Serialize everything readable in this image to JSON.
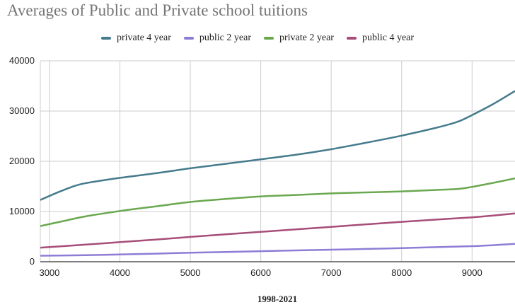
{
  "chart_data": {
    "type": "line",
    "title": "Averages of Public and Private school tuitions",
    "xlabel": "1998-2021",
    "ylabel": "",
    "xlim": [
      2870,
      9610
    ],
    "ylim": [
      0,
      40000
    ],
    "x_ticks": [
      3000,
      4000,
      5000,
      6000,
      7000,
      8000,
      9000
    ],
    "y_ticks": [
      0,
      10000,
      20000,
      30000,
      40000
    ],
    "grid": true,
    "legend_position": "top",
    "series": [
      {
        "name": "private 4 year",
        "color": "#457b8c",
        "points": [
          [
            2870,
            12300
          ],
          [
            3100,
            13700
          ],
          [
            3300,
            14800
          ],
          [
            3500,
            15600
          ],
          [
            4000,
            16700
          ],
          [
            4500,
            17600
          ],
          [
            5000,
            18600
          ],
          [
            5500,
            19500
          ],
          [
            6000,
            20400
          ],
          [
            6500,
            21300
          ],
          [
            7000,
            22400
          ],
          [
            7500,
            23700
          ],
          [
            8000,
            25100
          ],
          [
            8500,
            26700
          ],
          [
            8800,
            27900
          ],
          [
            9000,
            29200
          ],
          [
            9300,
            31400
          ],
          [
            9610,
            34000
          ]
        ]
      },
      {
        "name": "public 2 year",
        "color": "#8e7cd6",
        "points": [
          [
            2870,
            1200
          ],
          [
            3500,
            1300
          ],
          [
            4000,
            1450
          ],
          [
            4500,
            1600
          ],
          [
            5000,
            1800
          ],
          [
            5500,
            1950
          ],
          [
            6000,
            2100
          ],
          [
            6500,
            2250
          ],
          [
            7000,
            2400
          ],
          [
            7500,
            2550
          ],
          [
            8000,
            2700
          ],
          [
            8500,
            2900
          ],
          [
            9000,
            3100
          ],
          [
            9300,
            3300
          ],
          [
            9610,
            3550
          ]
        ]
      },
      {
        "name": "private 2 year",
        "color": "#6aa84f",
        "points": [
          [
            2870,
            7100
          ],
          [
            3200,
            8100
          ],
          [
            3500,
            9000
          ],
          [
            4000,
            10100
          ],
          [
            4500,
            11000
          ],
          [
            5000,
            11900
          ],
          [
            5500,
            12500
          ],
          [
            6000,
            13000
          ],
          [
            6500,
            13300
          ],
          [
            7000,
            13600
          ],
          [
            7500,
            13800
          ],
          [
            8000,
            14000
          ],
          [
            8500,
            14300
          ],
          [
            8800,
            14500
          ],
          [
            9000,
            14900
          ],
          [
            9300,
            15700
          ],
          [
            9610,
            16600
          ]
        ]
      },
      {
        "name": "public 4 year",
        "color": "#a64d79",
        "points": [
          [
            2870,
            2800
          ],
          [
            3500,
            3400
          ],
          [
            4000,
            3900
          ],
          [
            4500,
            4400
          ],
          [
            5000,
            4950
          ],
          [
            5500,
            5450
          ],
          [
            6000,
            5950
          ],
          [
            6500,
            6450
          ],
          [
            7000,
            6950
          ],
          [
            7500,
            7450
          ],
          [
            8000,
            7950
          ],
          [
            8500,
            8400
          ],
          [
            9000,
            8850
          ],
          [
            9300,
            9200
          ],
          [
            9610,
            9600
          ]
        ]
      }
    ]
  }
}
